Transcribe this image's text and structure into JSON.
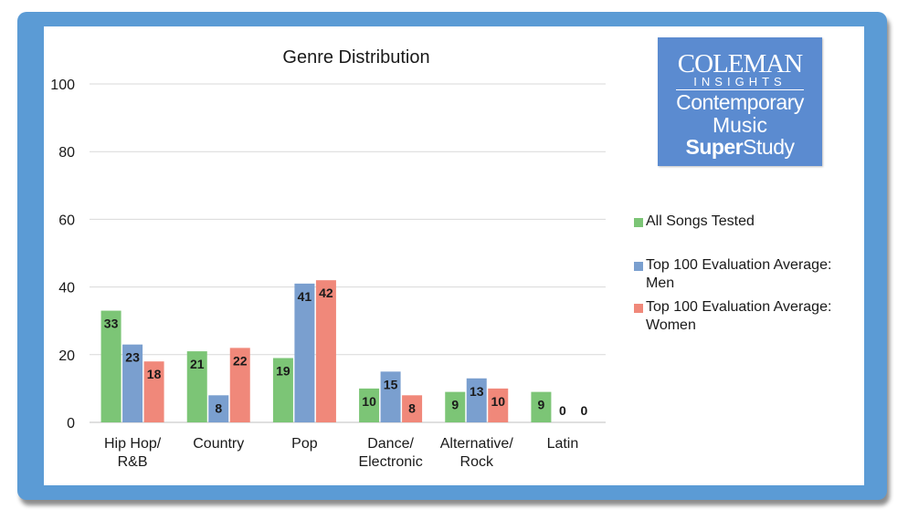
{
  "chart_data": {
    "type": "bar",
    "title": "Genre Distribution",
    "categories": [
      [
        "Hip Hop/",
        "R&B"
      ],
      [
        "Country"
      ],
      [
        "Pop"
      ],
      [
        "Dance/",
        "Electronic"
      ],
      [
        "Alternative/",
        "Rock"
      ],
      [
        "Latin"
      ]
    ],
    "series": [
      {
        "name": "All Songs Tested",
        "color": "#7cc576",
        "values": [
          33,
          21,
          19,
          10,
          9,
          9
        ]
      },
      {
        "name_lines": [
          "Top 100 Evaluation Average:",
          "Men"
        ],
        "name": "Top 100 Evaluation Average: Men",
        "color": "#7a9fcf",
        "values": [
          23,
          8,
          41,
          15,
          13,
          0
        ]
      },
      {
        "name_lines": [
          "Top 100 Evaluation Average:",
          "Women"
        ],
        "name": "Top 100 Evaluation Average: Women",
        "color": "#f0887a",
        "values": [
          18,
          22,
          42,
          8,
          10,
          0
        ]
      }
    ],
    "ylim": [
      0,
      100
    ],
    "yticks": [
      0,
      20,
      40,
      60,
      80,
      100
    ],
    "grid": true,
    "xlabel": "",
    "ylabel": "",
    "legend": "right"
  },
  "logo": {
    "line1": "COLEMAN",
    "line2": "INSIGHTS",
    "line3": "Contemporary",
    "line4": "Music",
    "line5_bold": "Super",
    "line5_rest": "Study"
  },
  "colors": {
    "frame": "#5b9bd5",
    "grid": "#d9d9d9",
    "axis": "#bfbfbf"
  }
}
